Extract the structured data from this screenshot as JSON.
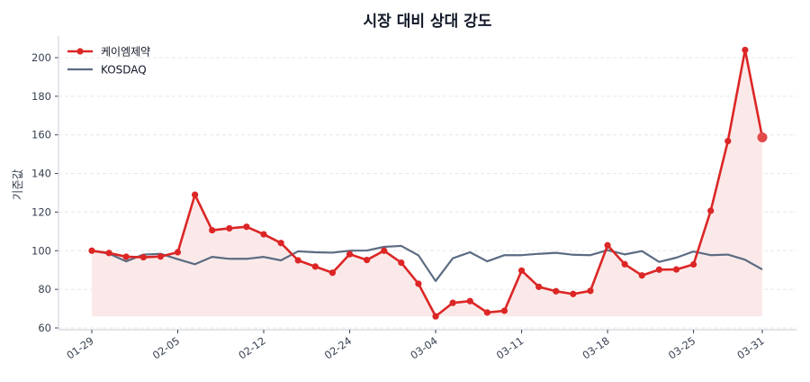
{
  "chart_data": {
    "type": "line",
    "title": "시장 대비 상대 강도",
    "xlabel": "",
    "ylabel": "기준값",
    "ylim": [
      60,
      210
    ],
    "yticks": [
      60,
      80,
      100,
      120,
      140,
      160,
      180,
      200
    ],
    "grid": "horizontal dashed",
    "legend_position": "upper left",
    "x_count": 40,
    "x_ticks": [
      {
        "index": 0,
        "label": "01-29"
      },
      {
        "index": 5,
        "label": "02-05"
      },
      {
        "index": 10,
        "label": "02-12"
      },
      {
        "index": 15,
        "label": "02-24"
      },
      {
        "index": 20,
        "label": "03-04"
      },
      {
        "index": 25,
        "label": "03-11"
      },
      {
        "index": 30,
        "label": "03-18"
      },
      {
        "index": 35,
        "label": "03-25"
      },
      {
        "index": 39,
        "label": "03-31"
      }
    ],
    "series": [
      {
        "name": "케이엠제약",
        "color": "#dc2626",
        "fill_color": "#fbe9e9",
        "markers": true,
        "values": [
          100.0,
          98.8,
          96.9,
          96.6,
          97.0,
          99.2,
          129.0,
          110.6,
          111.6,
          112.4,
          108.5,
          104.0,
          95.0,
          91.8,
          88.6,
          98.2,
          95.2,
          100.0,
          93.8,
          82.9,
          66.0,
          73.0,
          73.9,
          68.0,
          68.9,
          89.7,
          81.3,
          79.0,
          77.6,
          79.2,
          102.8,
          93.0,
          87.2,
          90.2,
          90.3,
          92.9,
          120.7,
          156.8,
          204.0,
          158.7
        ]
      },
      {
        "name": "KOSDAQ",
        "color": "#5b6b82",
        "markers": false,
        "values": [
          100.0,
          98.5,
          94.5,
          98.0,
          98.4,
          95.6,
          93.0,
          96.8,
          95.8,
          95.8,
          96.8,
          95.0,
          99.7,
          99.2,
          99.0,
          100.0,
          100.1,
          102.0,
          102.5,
          97.6,
          84.3,
          96.1,
          99.2,
          94.5,
          97.7,
          97.7,
          98.4,
          98.9,
          97.9,
          97.7,
          100.3,
          98.1,
          99.8,
          94.2,
          96.4,
          99.6,
          97.7,
          98.0,
          95.3,
          90.3
        ]
      }
    ]
  },
  "colors": {
    "grid": "#e5e7eb",
    "spine": "#d1d5db",
    "tick": "#374151"
  }
}
